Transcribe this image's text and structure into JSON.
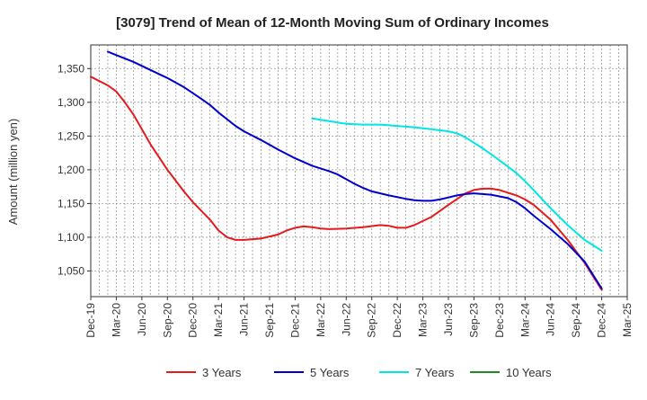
{
  "chart_data": {
    "type": "line",
    "title": "[3079]  Trend of Mean of 12-Month Moving Sum of Ordinary Incomes",
    "xlabel": "",
    "ylabel": "Amount (million yen)",
    "ylim": [
      1012,
      1385
    ],
    "yticks": [
      1050,
      1100,
      1150,
      1200,
      1250,
      1300,
      1350
    ],
    "ytick_labels": [
      "1,050",
      "1,100",
      "1,150",
      "1,200",
      "1,250",
      "1,300",
      "1,350"
    ],
    "x_range": [
      0,
      63
    ],
    "xticks": [
      {
        "i": 0,
        "label": "Dec-19"
      },
      {
        "i": 3,
        "label": "Mar-20"
      },
      {
        "i": 6,
        "label": "Jun-20"
      },
      {
        "i": 9,
        "label": "Sep-20"
      },
      {
        "i": 12,
        "label": "Dec-20"
      },
      {
        "i": 15,
        "label": "Mar-21"
      },
      {
        "i": 18,
        "label": "Jun-21"
      },
      {
        "i": 21,
        "label": "Sep-21"
      },
      {
        "i": 24,
        "label": "Dec-21"
      },
      {
        "i": 27,
        "label": "Mar-22"
      },
      {
        "i": 30,
        "label": "Jun-22"
      },
      {
        "i": 33,
        "label": "Sep-22"
      },
      {
        "i": 36,
        "label": "Dec-22"
      },
      {
        "i": 39,
        "label": "Mar-23"
      },
      {
        "i": 42,
        "label": "Jun-23"
      },
      {
        "i": 45,
        "label": "Sep-23"
      },
      {
        "i": 48,
        "label": "Dec-23"
      },
      {
        "i": 51,
        "label": "Mar-24"
      },
      {
        "i": 54,
        "label": "Jun-24"
      },
      {
        "i": 57,
        "label": "Sep-24"
      },
      {
        "i": 60,
        "label": "Dec-24"
      },
      {
        "i": 63,
        "label": "Mar-25"
      }
    ],
    "grid": true,
    "legend_position": "bottom",
    "series": [
      {
        "name": "3 Years",
        "color": "#e41a1c",
        "points": [
          [
            0,
            1338
          ],
          [
            2,
            1325
          ],
          [
            3,
            1316
          ],
          [
            4,
            1300
          ],
          [
            5,
            1282
          ],
          [
            6,
            1260
          ],
          [
            7,
            1238
          ],
          [
            9,
            1200
          ],
          [
            11,
            1167
          ],
          [
            12,
            1152
          ],
          [
            14,
            1126
          ],
          [
            15,
            1110
          ],
          [
            16,
            1100
          ],
          [
            17,
            1096
          ],
          [
            18,
            1096
          ],
          [
            20,
            1098
          ],
          [
            22,
            1104
          ],
          [
            23,
            1110
          ],
          [
            24,
            1114
          ],
          [
            25,
            1116
          ],
          [
            26,
            1115
          ],
          [
            27,
            1113
          ],
          [
            28,
            1112
          ],
          [
            30,
            1113
          ],
          [
            32,
            1115
          ],
          [
            34,
            1118
          ],
          [
            35,
            1117
          ],
          [
            36,
            1114
          ],
          [
            37,
            1114
          ],
          [
            38,
            1118
          ],
          [
            40,
            1130
          ],
          [
            42,
            1148
          ],
          [
            44,
            1165
          ],
          [
            45,
            1170
          ],
          [
            46,
            1172
          ],
          [
            47,
            1172
          ],
          [
            48,
            1170
          ],
          [
            50,
            1162
          ],
          [
            51,
            1156
          ],
          [
            52,
            1148
          ],
          [
            54,
            1126
          ],
          [
            56,
            1096
          ],
          [
            58,
            1062
          ],
          [
            60,
            1022
          ]
        ]
      },
      {
        "name": "5 Years",
        "color": "#0000cc",
        "points": [
          [
            2,
            1375
          ],
          [
            3,
            1370
          ],
          [
            5,
            1360
          ],
          [
            7,
            1348
          ],
          [
            9,
            1336
          ],
          [
            11,
            1322
          ],
          [
            13,
            1305
          ],
          [
            14,
            1296
          ],
          [
            15,
            1285
          ],
          [
            16,
            1275
          ],
          [
            17,
            1265
          ],
          [
            18,
            1257
          ],
          [
            20,
            1244
          ],
          [
            22,
            1230
          ],
          [
            24,
            1217
          ],
          [
            26,
            1206
          ],
          [
            28,
            1198
          ],
          [
            29,
            1193
          ],
          [
            30,
            1186
          ],
          [
            31,
            1179
          ],
          [
            32,
            1173
          ],
          [
            33,
            1168
          ],
          [
            35,
            1162
          ],
          [
            37,
            1157
          ],
          [
            38,
            1155
          ],
          [
            39,
            1154
          ],
          [
            40,
            1154
          ],
          [
            41,
            1156
          ],
          [
            42,
            1159
          ],
          [
            43,
            1162
          ],
          [
            44,
            1164
          ],
          [
            45,
            1165
          ],
          [
            46,
            1164
          ],
          [
            47,
            1163
          ],
          [
            49,
            1158
          ],
          [
            50,
            1152
          ],
          [
            51,
            1143
          ],
          [
            52,
            1132
          ],
          [
            54,
            1112
          ],
          [
            56,
            1090
          ],
          [
            58,
            1064
          ],
          [
            60,
            1024
          ]
        ]
      },
      {
        "name": "7 Years",
        "color": "#00e5e5",
        "points": [
          [
            26,
            1276
          ],
          [
            28,
            1272
          ],
          [
            30,
            1268
          ],
          [
            32,
            1267
          ],
          [
            34,
            1267
          ],
          [
            36,
            1265
          ],
          [
            38,
            1263
          ],
          [
            40,
            1260
          ],
          [
            42,
            1257
          ],
          [
            43,
            1254
          ],
          [
            44,
            1248
          ],
          [
            45,
            1240
          ],
          [
            46,
            1232
          ],
          [
            47,
            1223
          ],
          [
            48,
            1214
          ],
          [
            50,
            1195
          ],
          [
            51,
            1183
          ],
          [
            52,
            1170
          ],
          [
            54,
            1143
          ],
          [
            56,
            1118
          ],
          [
            58,
            1096
          ],
          [
            60,
            1080
          ]
        ]
      },
      {
        "name": "10 Years",
        "color": "#228b22",
        "points": []
      }
    ]
  }
}
